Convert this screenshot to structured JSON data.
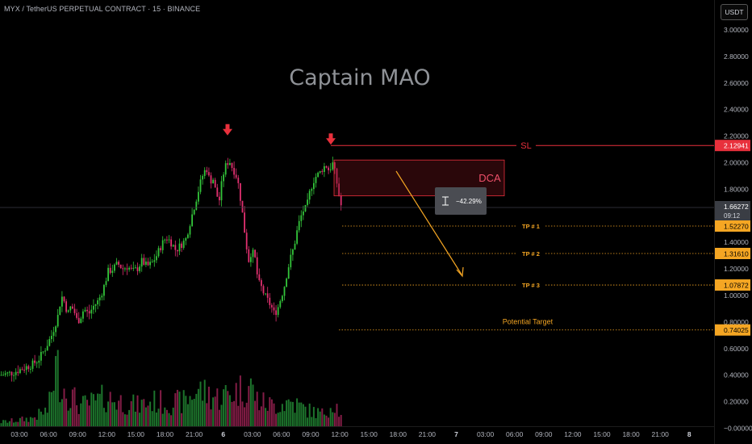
{
  "header": {
    "symbol": "MYX / TetherUS PERPETUAL CONTRACT · 15 · BINANCE",
    "unit": "USDT"
  },
  "watermark": "Captain MAO",
  "colors": {
    "up": "#26a69a",
    "bull": "#33c43a",
    "bear": "#e0306f",
    "red": "#e8303c",
    "orange": "#f5a623"
  },
  "chart_data": {
    "type": "candlestick",
    "title": "",
    "y_axis": {
      "ticks": [
        "3.00000",
        "2.80000",
        "2.60000",
        "2.40000",
        "2.20000",
        "2.00000",
        "1.80000",
        "1.60000",
        "1.40000",
        "1.20000",
        "1.00000",
        "0.80000",
        "0.60000",
        "0.40000",
        "0.20000",
        "−0.00000"
      ],
      "tick_values": [
        3.0,
        2.8,
        2.6,
        2.4,
        2.2,
        2.0,
        1.8,
        1.6,
        1.4,
        1.2,
        1.0,
        0.8,
        0.6,
        0.4,
        0.2,
        0.0
      ],
      "ylim": [
        -0.04,
        3.04
      ]
    },
    "x_axis": {
      "ticks": [
        "03:00",
        "06:00",
        "09:00",
        "12:00",
        "15:00",
        "18:00",
        "21:00",
        "6",
        "03:00",
        "06:00",
        "09:00",
        "12:00",
        "15:00",
        "18:00",
        "21:00",
        "7",
        "03:00",
        "06:00",
        "09:00",
        "12:00",
        "15:00",
        "18:00",
        "21:00",
        "8"
      ]
    },
    "price_path": [
      [
        0,
        0.4
      ],
      [
        8,
        0.41
      ],
      [
        16,
        0.42
      ],
      [
        24,
        0.44
      ],
      [
        32,
        0.46
      ],
      [
        40,
        0.48
      ],
      [
        48,
        0.52
      ],
      [
        56,
        0.6
      ],
      [
        64,
        0.7
      ],
      [
        72,
        0.85
      ],
      [
        76,
        1.0
      ],
      [
        80,
        0.95
      ],
      [
        84,
        0.86
      ],
      [
        88,
        0.92
      ],
      [
        92,
        0.88
      ],
      [
        96,
        0.8
      ],
      [
        100,
        0.84
      ],
      [
        104,
        0.9
      ],
      [
        110,
        0.86
      ],
      [
        116,
        0.92
      ],
      [
        122,
        0.96
      ],
      [
        128,
        1.05
      ],
      [
        134,
        1.18
      ],
      [
        140,
        1.2
      ],
      [
        146,
        1.24
      ],
      [
        152,
        1.2
      ],
      [
        158,
        1.22
      ],
      [
        164,
        1.18
      ],
      [
        170,
        1.2
      ],
      [
        176,
        1.26
      ],
      [
        182,
        1.22
      ],
      [
        188,
        1.24
      ],
      [
        194,
        1.3
      ],
      [
        200,
        1.38
      ],
      [
        206,
        1.44
      ],
      [
        212,
        1.4
      ],
      [
        218,
        1.34
      ],
      [
        224,
        1.38
      ],
      [
        230,
        1.42
      ],
      [
        236,
        1.56
      ],
      [
        242,
        1.7
      ],
      [
        248,
        1.84
      ],
      [
        252,
        1.92
      ],
      [
        256,
        1.96
      ],
      [
        260,
        1.86
      ],
      [
        264,
        1.88
      ],
      [
        268,
        1.76
      ],
      [
        272,
        1.72
      ],
      [
        276,
        1.9
      ],
      [
        280,
        1.98
      ],
      [
        284,
        2.02
      ],
      [
        288,
        1.96
      ],
      [
        292,
        1.92
      ],
      [
        296,
        1.82
      ],
      [
        300,
        1.64
      ],
      [
        304,
        1.44
      ],
      [
        308,
        1.26
      ],
      [
        312,
        1.34
      ],
      [
        316,
        1.28
      ],
      [
        320,
        1.1
      ],
      [
        324,
        1.06
      ],
      [
        328,
        1.0
      ],
      [
        332,
        0.96
      ],
      [
        336,
        0.92
      ],
      [
        340,
        0.86
      ],
      [
        344,
        0.9
      ],
      [
        348,
        0.98
      ],
      [
        352,
        1.06
      ],
      [
        356,
        1.18
      ],
      [
        360,
        1.28
      ],
      [
        364,
        1.36
      ],
      [
        368,
        1.48
      ],
      [
        372,
        1.58
      ],
      [
        376,
        1.64
      ],
      [
        380,
        1.66
      ],
      [
        384,
        1.78
      ],
      [
        388,
        1.86
      ],
      [
        392,
        1.9
      ],
      [
        396,
        1.92
      ],
      [
        400,
        1.96
      ],
      [
        404,
        1.98
      ],
      [
        408,
        1.94
      ],
      [
        412,
        2.0
      ],
      [
        416,
        1.9
      ],
      [
        420,
        1.76
      ],
      [
        423,
        1.67
      ]
    ],
    "volume_profile": [
      [
        0,
        0.05
      ],
      [
        20,
        0.07
      ],
      [
        40,
        0.1
      ],
      [
        60,
        0.2
      ],
      [
        66,
        0.55
      ],
      [
        70,
        0.75
      ],
      [
        74,
        0.6
      ],
      [
        80,
        0.45
      ],
      [
        90,
        0.35
      ],
      [
        100,
        0.25
      ],
      [
        120,
        0.3
      ],
      [
        130,
        0.35
      ],
      [
        150,
        0.3
      ],
      [
        170,
        0.25
      ],
      [
        190,
        0.3
      ],
      [
        210,
        0.28
      ],
      [
        230,
        0.3
      ],
      [
        245,
        0.45
      ],
      [
        255,
        0.4
      ],
      [
        270,
        0.35
      ],
      [
        285,
        0.4
      ],
      [
        300,
        0.45
      ],
      [
        310,
        0.5
      ],
      [
        320,
        0.3
      ],
      [
        340,
        0.25
      ],
      [
        360,
        0.3
      ],
      [
        380,
        0.2
      ],
      [
        400,
        0.15
      ],
      [
        415,
        0.3
      ],
      [
        423,
        0.1
      ]
    ],
    "current_price": {
      "value": 1.66272,
      "label": "1.66272",
      "countdown": "09:12"
    },
    "annotations": {
      "sl": {
        "label": "SL",
        "value": 2.12941,
        "price_label": "2.12941"
      },
      "dca": {
        "label": "DCA",
        "low": 1.75,
        "high": 2.02
      },
      "targets": [
        {
          "label": "TP # 1",
          "value": 1.5227,
          "price_label": "1.52270"
        },
        {
          "label": "TP # 2",
          "value": 1.3161,
          "price_label": "1.31610"
        },
        {
          "label": "TP # 3",
          "value": 1.07872,
          "price_label": "1.07872"
        },
        {
          "label": "Potential Target",
          "value": 0.74025,
          "price_label": "0.74025"
        }
      ],
      "measure": {
        "label": "−42.29%"
      },
      "peak_markers": [
        {
          "bar_x": 282,
          "value": 2.12
        },
        {
          "bar_x": 410,
          "value": 2.05
        }
      ]
    }
  }
}
